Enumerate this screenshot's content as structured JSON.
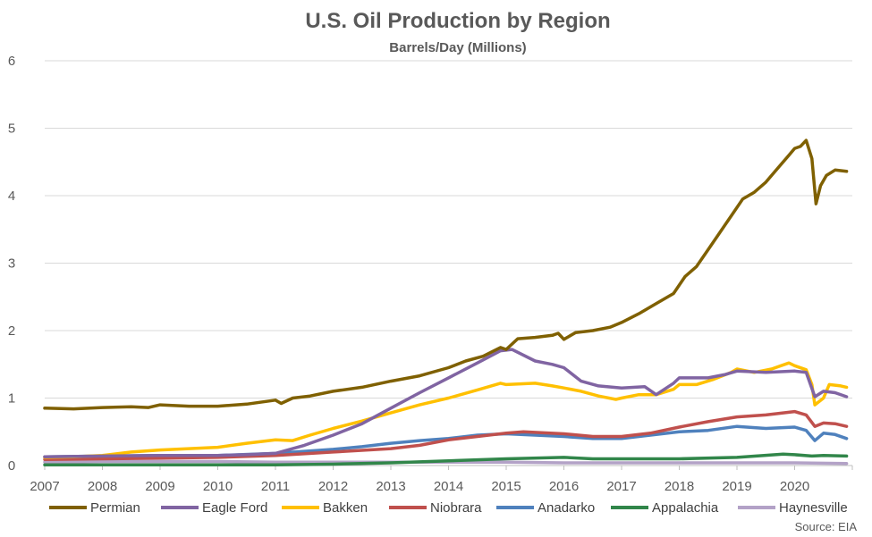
{
  "chart_data": {
    "type": "line",
    "title": "U.S. Oil Production by Region",
    "subtitle": "Barrels/Day (Millions)",
    "xlabel": "",
    "ylabel": "",
    "xlim": [
      2007,
      2021
    ],
    "ylim": [
      0,
      6
    ],
    "y_ticks": [
      0,
      1,
      2,
      3,
      4,
      5,
      6
    ],
    "x_ticks": [
      2007,
      2008,
      2009,
      2010,
      2011,
      2012,
      2013,
      2014,
      2015,
      2016,
      2017,
      2018,
      2019,
      2020
    ],
    "grid": true,
    "legend_position": "bottom",
    "source": "Source: EIA",
    "series": [
      {
        "name": "Permian",
        "color": "#7f6000",
        "points": [
          [
            2007.0,
            0.85
          ],
          [
            2007.5,
            0.84
          ],
          [
            2008.0,
            0.86
          ],
          [
            2008.5,
            0.87
          ],
          [
            2008.8,
            0.86
          ],
          [
            2009.0,
            0.9
          ],
          [
            2009.5,
            0.88
          ],
          [
            2010.0,
            0.88
          ],
          [
            2010.5,
            0.91
          ],
          [
            2011.0,
            0.97
          ],
          [
            2011.1,
            0.92
          ],
          [
            2011.3,
            1.0
          ],
          [
            2011.6,
            1.03
          ],
          [
            2012.0,
            1.1
          ],
          [
            2012.5,
            1.16
          ],
          [
            2013.0,
            1.25
          ],
          [
            2013.5,
            1.33
          ],
          [
            2014.0,
            1.45
          ],
          [
            2014.3,
            1.55
          ],
          [
            2014.6,
            1.62
          ],
          [
            2014.9,
            1.75
          ],
          [
            2015.0,
            1.72
          ],
          [
            2015.2,
            1.88
          ],
          [
            2015.5,
            1.9
          ],
          [
            2015.8,
            1.93
          ],
          [
            2015.9,
            1.96
          ],
          [
            2016.0,
            1.87
          ],
          [
            2016.2,
            1.97
          ],
          [
            2016.5,
            2.0
          ],
          [
            2016.8,
            2.05
          ],
          [
            2017.0,
            2.12
          ],
          [
            2017.3,
            2.25
          ],
          [
            2017.6,
            2.4
          ],
          [
            2017.9,
            2.55
          ],
          [
            2018.1,
            2.8
          ],
          [
            2018.3,
            2.95
          ],
          [
            2018.5,
            3.2
          ],
          [
            2018.7,
            3.45
          ],
          [
            2018.9,
            3.7
          ],
          [
            2019.1,
            3.95
          ],
          [
            2019.3,
            4.05
          ],
          [
            2019.5,
            4.2
          ],
          [
            2019.7,
            4.4
          ],
          [
            2019.9,
            4.6
          ],
          [
            2020.0,
            4.7
          ],
          [
            2020.1,
            4.73
          ],
          [
            2020.2,
            4.82
          ],
          [
            2020.3,
            4.55
          ],
          [
            2020.37,
            3.88
          ],
          [
            2020.45,
            4.15
          ],
          [
            2020.55,
            4.3
          ],
          [
            2020.7,
            4.38
          ],
          [
            2020.9,
            4.36
          ]
        ]
      },
      {
        "name": "Eagle Ford",
        "color": "#8064a2",
        "points": [
          [
            2007.0,
            0.13
          ],
          [
            2008.0,
            0.14
          ],
          [
            2009.0,
            0.15
          ],
          [
            2010.0,
            0.15
          ],
          [
            2010.5,
            0.16
          ],
          [
            2011.0,
            0.18
          ],
          [
            2011.5,
            0.3
          ],
          [
            2012.0,
            0.45
          ],
          [
            2012.5,
            0.62
          ],
          [
            2013.0,
            0.85
          ],
          [
            2013.5,
            1.08
          ],
          [
            2014.0,
            1.3
          ],
          [
            2014.5,
            1.52
          ],
          [
            2014.9,
            1.7
          ],
          [
            2015.1,
            1.72
          ],
          [
            2015.5,
            1.55
          ],
          [
            2015.8,
            1.5
          ],
          [
            2016.0,
            1.45
          ],
          [
            2016.3,
            1.25
          ],
          [
            2016.6,
            1.18
          ],
          [
            2017.0,
            1.15
          ],
          [
            2017.4,
            1.17
          ],
          [
            2017.6,
            1.05
          ],
          [
            2017.9,
            1.22
          ],
          [
            2018.0,
            1.3
          ],
          [
            2018.5,
            1.3
          ],
          [
            2018.8,
            1.35
          ],
          [
            2019.0,
            1.4
          ],
          [
            2019.5,
            1.38
          ],
          [
            2020.0,
            1.4
          ],
          [
            2020.2,
            1.38
          ],
          [
            2020.35,
            1.02
          ],
          [
            2020.5,
            1.1
          ],
          [
            2020.7,
            1.08
          ],
          [
            2020.9,
            1.02
          ]
        ]
      },
      {
        "name": "Bakken",
        "color": "#ffc000",
        "points": [
          [
            2007.0,
            0.12
          ],
          [
            2007.5,
            0.13
          ],
          [
            2008.0,
            0.15
          ],
          [
            2008.5,
            0.2
          ],
          [
            2009.0,
            0.23
          ],
          [
            2009.5,
            0.25
          ],
          [
            2010.0,
            0.27
          ],
          [
            2010.5,
            0.33
          ],
          [
            2011.0,
            0.38
          ],
          [
            2011.3,
            0.37
          ],
          [
            2011.6,
            0.45
          ],
          [
            2012.0,
            0.55
          ],
          [
            2012.5,
            0.66
          ],
          [
            2013.0,
            0.78
          ],
          [
            2013.5,
            0.9
          ],
          [
            2014.0,
            1.0
          ],
          [
            2014.5,
            1.12
          ],
          [
            2014.9,
            1.22
          ],
          [
            2015.0,
            1.2
          ],
          [
            2015.5,
            1.22
          ],
          [
            2015.8,
            1.18
          ],
          [
            2016.0,
            1.15
          ],
          [
            2016.3,
            1.1
          ],
          [
            2016.6,
            1.03
          ],
          [
            2016.9,
            0.98
          ],
          [
            2017.0,
            1.0
          ],
          [
            2017.3,
            1.05
          ],
          [
            2017.6,
            1.05
          ],
          [
            2017.9,
            1.13
          ],
          [
            2018.0,
            1.2
          ],
          [
            2018.3,
            1.2
          ],
          [
            2018.6,
            1.28
          ],
          [
            2018.9,
            1.38
          ],
          [
            2019.0,
            1.43
          ],
          [
            2019.3,
            1.38
          ],
          [
            2019.6,
            1.43
          ],
          [
            2019.9,
            1.52
          ],
          [
            2020.0,
            1.48
          ],
          [
            2020.2,
            1.42
          ],
          [
            2020.3,
            1.2
          ],
          [
            2020.35,
            0.9
          ],
          [
            2020.5,
            1.0
          ],
          [
            2020.6,
            1.2
          ],
          [
            2020.8,
            1.18
          ],
          [
            2020.9,
            1.16
          ]
        ]
      },
      {
        "name": "Niobrara",
        "color": "#c0504d",
        "points": [
          [
            2007.0,
            0.09
          ],
          [
            2008.0,
            0.1
          ],
          [
            2009.0,
            0.11
          ],
          [
            2010.0,
            0.12
          ],
          [
            2011.0,
            0.15
          ],
          [
            2012.0,
            0.2
          ],
          [
            2013.0,
            0.25
          ],
          [
            2013.5,
            0.3
          ],
          [
            2014.0,
            0.38
          ],
          [
            2014.5,
            0.43
          ],
          [
            2015.0,
            0.48
          ],
          [
            2015.3,
            0.5
          ],
          [
            2016.0,
            0.47
          ],
          [
            2016.5,
            0.43
          ],
          [
            2017.0,
            0.43
          ],
          [
            2017.5,
            0.48
          ],
          [
            2018.0,
            0.57
          ],
          [
            2018.5,
            0.65
          ],
          [
            2019.0,
            0.72
          ],
          [
            2019.5,
            0.75
          ],
          [
            2020.0,
            0.8
          ],
          [
            2020.2,
            0.75
          ],
          [
            2020.35,
            0.58
          ],
          [
            2020.5,
            0.63
          ],
          [
            2020.7,
            0.62
          ],
          [
            2020.9,
            0.58
          ]
        ]
      },
      {
        "name": "Anadarko",
        "color": "#4f81bd",
        "points": [
          [
            2007.0,
            0.13
          ],
          [
            2008.0,
            0.14
          ],
          [
            2009.0,
            0.15
          ],
          [
            2010.0,
            0.15
          ],
          [
            2011.0,
            0.18
          ],
          [
            2012.0,
            0.24
          ],
          [
            2012.5,
            0.28
          ],
          [
            2013.0,
            0.33
          ],
          [
            2013.5,
            0.37
          ],
          [
            2014.0,
            0.4
          ],
          [
            2014.5,
            0.45
          ],
          [
            2015.0,
            0.47
          ],
          [
            2015.5,
            0.45
          ],
          [
            2016.0,
            0.43
          ],
          [
            2016.5,
            0.4
          ],
          [
            2017.0,
            0.4
          ],
          [
            2017.5,
            0.45
          ],
          [
            2018.0,
            0.5
          ],
          [
            2018.5,
            0.52
          ],
          [
            2019.0,
            0.58
          ],
          [
            2019.5,
            0.55
          ],
          [
            2020.0,
            0.57
          ],
          [
            2020.2,
            0.52
          ],
          [
            2020.35,
            0.37
          ],
          [
            2020.5,
            0.48
          ],
          [
            2020.7,
            0.46
          ],
          [
            2020.9,
            0.4
          ]
        ]
      },
      {
        "name": "Appalachia",
        "color": "#31864a",
        "points": [
          [
            2007.0,
            0.01
          ],
          [
            2008.0,
            0.01
          ],
          [
            2009.0,
            0.01
          ],
          [
            2010.0,
            0.01
          ],
          [
            2011.0,
            0.01
          ],
          [
            2012.0,
            0.02
          ],
          [
            2013.0,
            0.04
          ],
          [
            2014.0,
            0.07
          ],
          [
            2015.0,
            0.1
          ],
          [
            2016.0,
            0.12
          ],
          [
            2016.5,
            0.1
          ],
          [
            2017.0,
            0.1
          ],
          [
            2018.0,
            0.1
          ],
          [
            2019.0,
            0.12
          ],
          [
            2019.8,
            0.17
          ],
          [
            2020.0,
            0.16
          ],
          [
            2020.3,
            0.14
          ],
          [
            2020.5,
            0.15
          ],
          [
            2020.9,
            0.14
          ]
        ]
      },
      {
        "name": "Haynesville",
        "color": "#b3a2c7",
        "points": [
          [
            2007.0,
            0.05
          ],
          [
            2008.0,
            0.06
          ],
          [
            2009.0,
            0.06
          ],
          [
            2010.0,
            0.06
          ],
          [
            2011.0,
            0.05
          ],
          [
            2012.0,
            0.05
          ],
          [
            2013.0,
            0.05
          ],
          [
            2014.0,
            0.05
          ],
          [
            2015.0,
            0.05
          ],
          [
            2016.0,
            0.04
          ],
          [
            2017.0,
            0.04
          ],
          [
            2018.0,
            0.04
          ],
          [
            2019.0,
            0.04
          ],
          [
            2020.0,
            0.04
          ],
          [
            2020.9,
            0.03
          ]
        ]
      }
    ]
  }
}
